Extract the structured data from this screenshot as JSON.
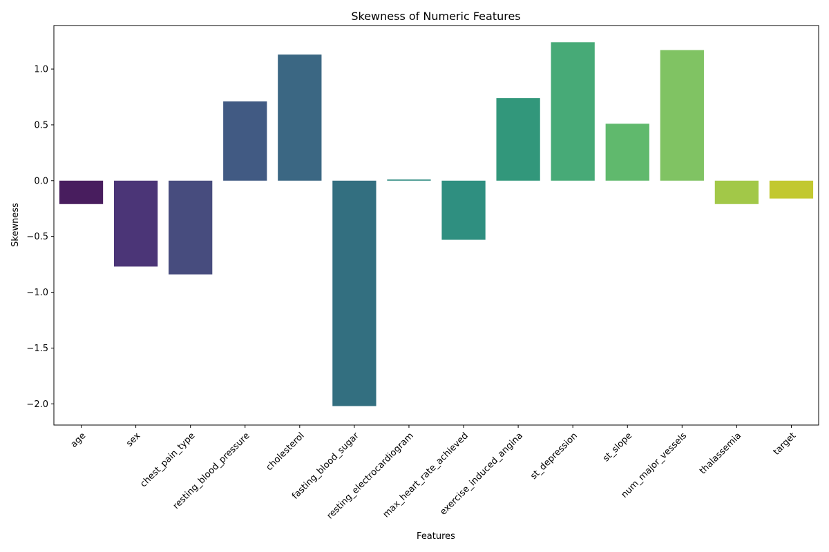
{
  "chart_data": {
    "type": "bar",
    "title": "Skewness of Numeric Features",
    "xlabel": "Features",
    "ylabel": "Skewness",
    "ylim": [
      -2.19,
      1.39
    ],
    "yticks": [
      -2.0,
      -1.5,
      -1.0,
      -0.5,
      0.0,
      0.5,
      1.0
    ],
    "ytick_labels": [
      "−2.0",
      "−1.5",
      "−1.0",
      "−0.5",
      "0.0",
      "0.5",
      "1.0"
    ],
    "grid": false,
    "legend": "none",
    "categories": [
      "age",
      "sex",
      "chest_pain_type",
      "resting_blood_pressure",
      "cholesterol",
      "fasting_blood_sugar",
      "resting_electrocardiogram",
      "max_heart_rate_achieved",
      "exercise_induced_angina",
      "st_depression",
      "st_slope",
      "num_major_vessels",
      "thalassemia",
      "target"
    ],
    "values": [
      -0.21,
      -0.77,
      -0.84,
      0.71,
      1.13,
      -2.02,
      0.01,
      -0.53,
      0.74,
      1.24,
      0.51,
      1.17,
      -0.21,
      -0.16
    ],
    "colors": [
      "#481d5e",
      "#4b3577",
      "#474c7e",
      "#415a83",
      "#3b6783",
      "#336f80",
      "#2e8a80",
      "#2f8f80",
      "#32977b",
      "#47aa77",
      "#60b96d",
      "#80c363",
      "#a2c848",
      "#c2c830"
    ]
  }
}
